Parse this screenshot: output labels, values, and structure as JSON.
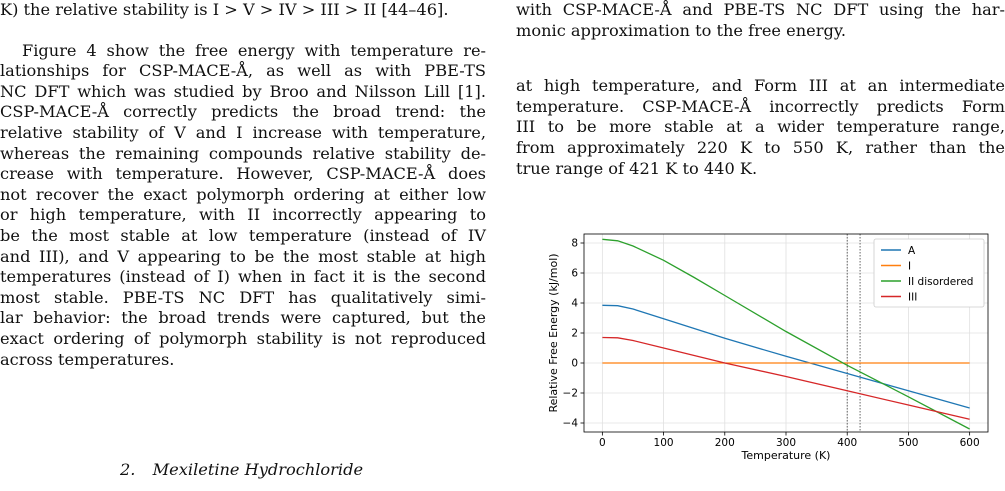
{
  "left_column": {
    "top_line": "K) the relative stability is I > V > IV > III > II [44–46].",
    "paragraph": [
      "Figure 4 show the free energy with temperature re-",
      "lationships for CSP-MACE-Å, as well as with PBE-TS",
      "NC DFT which was studied by Broo and Nilsson Lill [1].",
      "CSP-MACE-Å correctly predicts the broad trend: the",
      "relative stability of V and I increase with temperature,",
      "whereas the remaining compounds relative stability de-",
      "crease with temperature. However, CSP-MACE-Å does",
      "not recover the exact polymorph ordering at either low",
      "or high temperature, with II incorrectly appearing to",
      "be the most stable at low temperature (instead of IV",
      "and III), and V appearing to be the most stable at high",
      "temperatures (instead of I) when in fact it is the second",
      "most stable.  PBE-TS NC DFT has qualitatively simi-",
      "lar behavior: the broad trends were captured, but the",
      "exact ordering of polymorph stability is not reproduced",
      "across temperatures."
    ],
    "section_number": "2.",
    "section_title": "Mexiletine Hydrochloride"
  },
  "right_column": {
    "caption_tail": [
      "with CSP-MACE-Å and PBE-TS NC DFT using the har-",
      "monic approximation to the free energy."
    ],
    "paragraph": [
      "at high temperature, and Form III at an intermediate",
      "temperature. CSP-MACE-Å incorrectly predicts Form",
      "III to be more stable at a wider temperature range,",
      "from approximately 220 K to 550 K, rather than the",
      "true range of 421 K to 440 K."
    ]
  },
  "chart_data": {
    "type": "line",
    "xlabel": "Temperature (K)",
    "ylabel": "Relative Free Energy (kJ/mol)",
    "xlim": [
      -30,
      630
    ],
    "ylim": [
      -4.6,
      8.6
    ],
    "xticks": [
      0,
      100,
      200,
      300,
      400,
      500,
      600
    ],
    "yticks": [
      -4,
      -2,
      0,
      2,
      4,
      6,
      8
    ],
    "grid": true,
    "legend": "top-right",
    "vlines": [
      400,
      421
    ],
    "series": [
      {
        "name": "A",
        "color": "#1f77b4",
        "x": [
          0,
          25,
          50,
          100,
          150,
          200,
          300,
          400,
          500,
          600
        ],
        "y": [
          3.85,
          3.82,
          3.6,
          2.95,
          2.3,
          1.65,
          0.45,
          -0.7,
          -1.85,
          -3.0
        ]
      },
      {
        "name": "I",
        "color": "#ff7f0e",
        "x": [
          0,
          600
        ],
        "y": [
          0,
          0
        ]
      },
      {
        "name": "II disordered",
        "color": "#2ca02c",
        "x": [
          0,
          25,
          50,
          100,
          150,
          200,
          300,
          400,
          500,
          600
        ],
        "y": [
          8.25,
          8.15,
          7.8,
          6.85,
          5.7,
          4.5,
          2.1,
          -0.15,
          -2.25,
          -4.4
        ]
      },
      {
        "name": "III",
        "color": "#d62728",
        "x": [
          0,
          25,
          50,
          100,
          150,
          200,
          300,
          400,
          500,
          600
        ],
        "y": [
          1.7,
          1.68,
          1.5,
          1.0,
          0.5,
          0.0,
          -0.9,
          -1.85,
          -2.8,
          -3.75
        ]
      }
    ]
  }
}
